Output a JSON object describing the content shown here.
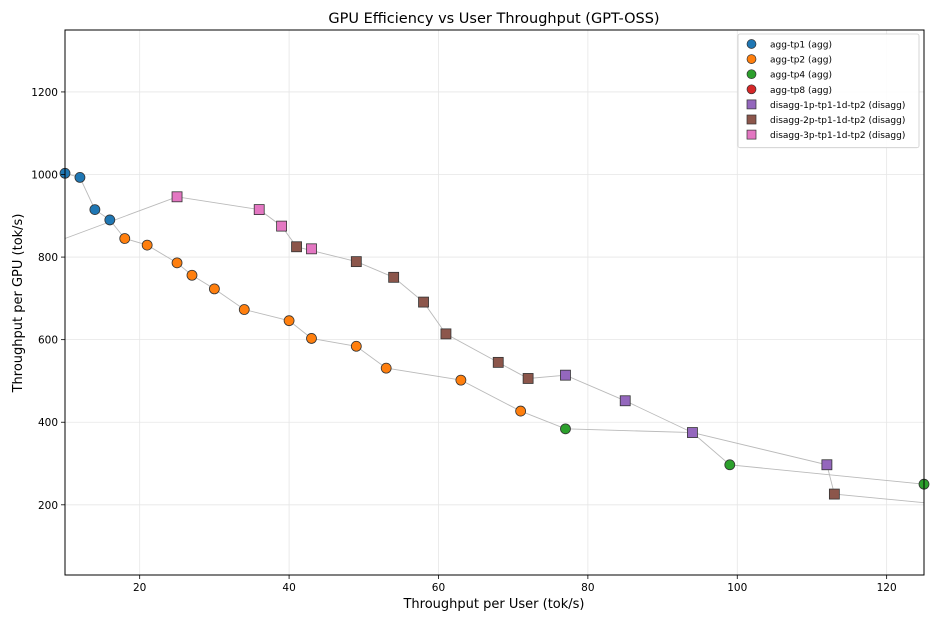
{
  "chart_data": {
    "type": "scatter",
    "title": "GPU Efficiency vs User Throughput (GPT-OSS)",
    "xlabel": "Throughput per User (tok/s)",
    "ylabel": "Throughput per GPU (tok/s)",
    "xlim": [
      10,
      125
    ],
    "ylim": [
      30,
      1350
    ],
    "xticks": [
      20,
      40,
      60,
      80,
      100,
      120
    ],
    "yticks": [
      200,
      400,
      600,
      800,
      1000,
      1200
    ],
    "grid": true,
    "legend_position": "top-right",
    "series": [
      {
        "name": "agg-tp1 (agg)",
        "color": "#1f77b4",
        "marker": "circle",
        "points": [
          [
            10,
            1003
          ],
          [
            12,
            993
          ],
          [
            14,
            915
          ],
          [
            16,
            890
          ]
        ]
      },
      {
        "name": "agg-tp2 (agg)",
        "color": "#ff7f0e",
        "marker": "circle",
        "points": [
          [
            18,
            845
          ],
          [
            21,
            829
          ],
          [
            25,
            786
          ],
          [
            27,
            756
          ],
          [
            30,
            723
          ],
          [
            34,
            673
          ],
          [
            40,
            646
          ],
          [
            43,
            603
          ],
          [
            49,
            584
          ],
          [
            53,
            531
          ],
          [
            63,
            502
          ],
          [
            71,
            427
          ]
        ]
      },
      {
        "name": "agg-tp4 (agg)",
        "color": "#2ca02c",
        "marker": "circle",
        "points": [
          [
            77,
            384
          ],
          [
            99,
            297
          ],
          [
            125,
            250
          ]
        ]
      },
      {
        "name": "agg-tp8 (agg)",
        "color": "#d62728",
        "marker": "circle",
        "points": []
      },
      {
        "name": "disagg-1p-tp1-1d-tp2 (disagg)",
        "color": "#9467bd",
        "marker": "square",
        "points": [
          [
            77,
            514
          ],
          [
            85,
            452
          ],
          [
            94,
            375
          ],
          [
            112,
            297
          ]
        ]
      },
      {
        "name": "disagg-2p-tp1-1d-tp2 (disagg)",
        "color": "#8c564b",
        "marker": "square",
        "points": [
          [
            41,
            825
          ],
          [
            49,
            789
          ],
          [
            54,
            751
          ],
          [
            58,
            691
          ],
          [
            61,
            614
          ],
          [
            68,
            545
          ],
          [
            72,
            506
          ],
          [
            113,
            226
          ]
        ]
      },
      {
        "name": "disagg-3p-tp1-1d-tp2 (disagg)",
        "color": "#e377c2",
        "marker": "square",
        "points": [
          [
            25,
            946
          ],
          [
            36,
            915
          ],
          [
            39,
            875
          ],
          [
            43,
            820
          ]
        ]
      }
    ],
    "frontier_lines": [
      {
        "points": [
          [
            10,
            1003
          ],
          [
            12,
            993
          ],
          [
            14,
            915
          ],
          [
            16,
            890
          ],
          [
            18,
            845
          ],
          [
            21,
            829
          ],
          [
            25,
            786
          ],
          [
            27,
            756
          ],
          [
            30,
            723
          ],
          [
            34,
            673
          ],
          [
            40,
            646
          ],
          [
            43,
            603
          ],
          [
            49,
            584
          ],
          [
            53,
            531
          ],
          [
            63,
            502
          ],
          [
            71,
            427
          ],
          [
            77,
            384
          ],
          [
            94,
            375
          ],
          [
            99,
            297
          ],
          [
            125,
            250
          ]
        ]
      },
      {
        "points": [
          [
            10,
            845
          ],
          [
            25,
            946
          ],
          [
            36,
            915
          ],
          [
            39,
            875
          ],
          [
            41,
            825
          ],
          [
            49,
            789
          ],
          [
            54,
            751
          ],
          [
            58,
            691
          ],
          [
            61,
            614
          ],
          [
            68,
            545
          ],
          [
            72,
            506
          ],
          [
            77,
            514
          ],
          [
            85,
            452
          ],
          [
            94,
            375
          ],
          [
            112,
            297
          ],
          [
            113,
            226
          ],
          [
            125,
            205
          ]
        ]
      }
    ]
  }
}
